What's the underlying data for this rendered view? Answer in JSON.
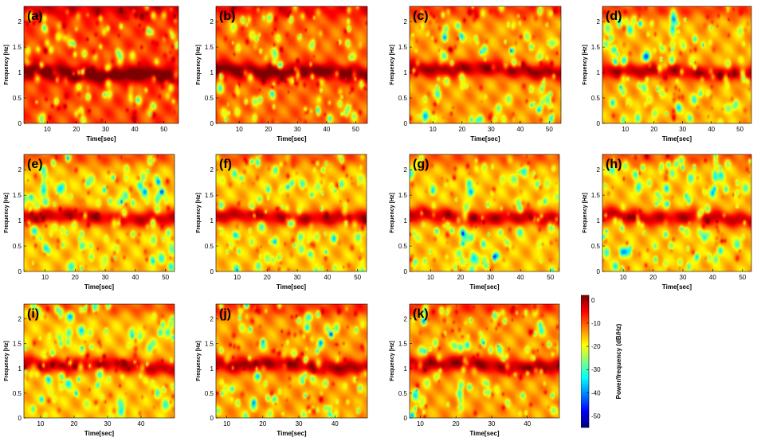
{
  "chart_data": {
    "type": "heatmap",
    "ylabel": "Frequency [Hz]",
    "xlabel": "Time[sec]",
    "colorbar": {
      "label": "Power/frequency (dB/Hz)",
      "ticks": [
        "0",
        "-10",
        "-20",
        "-30",
        "-40",
        "-50"
      ],
      "tick_values": [
        0,
        -10,
        -20,
        -30,
        -40,
        -50
      ],
      "range": [
        -55,
        2
      ],
      "colors": [
        "#00007f",
        "#0000ff",
        "#0080ff",
        "#00ffff",
        "#80ff80",
        "#ffff00",
        "#ff8000",
        "#ff0000",
        "#7f0000"
      ]
    },
    "panels": [
      {
        "label": "(a)",
        "xlim": [
          2,
          55
        ],
        "ylim": [
          0,
          2.3
        ],
        "xticks": [
          "10",
          "20",
          "30",
          "40",
          "50"
        ],
        "xtick_values": [
          10,
          20,
          30,
          40,
          50
        ],
        "yticks": [
          "0",
          "0.5",
          "1",
          "1.5",
          "2"
        ],
        "ytick_values": [
          0,
          0.5,
          1,
          1.5,
          2
        ],
        "band_hz": 1.0,
        "base_db": -9,
        "seed": 1
      },
      {
        "label": "(b)",
        "xlim": [
          2,
          54
        ],
        "ylim": [
          0,
          2.3
        ],
        "xticks": [
          "10",
          "20",
          "30",
          "40",
          "50"
        ],
        "xtick_values": [
          10,
          20,
          30,
          40,
          50
        ],
        "yticks": [
          "0",
          "0.5",
          "1",
          "1.5",
          "2"
        ],
        "ytick_values": [
          0,
          0.5,
          1,
          1.5,
          2
        ],
        "band_hz": 1.05,
        "base_db": -11,
        "seed": 2
      },
      {
        "label": "(c)",
        "xlim": [
          2,
          54
        ],
        "ylim": [
          0,
          2.3
        ],
        "xticks": [
          "10",
          "20",
          "30",
          "40",
          "50"
        ],
        "xtick_values": [
          10,
          20,
          30,
          40,
          50
        ],
        "yticks": [
          "0",
          "0.5",
          "1",
          "1.5",
          "2"
        ],
        "ytick_values": [
          0,
          0.5,
          1,
          1.5,
          2
        ],
        "band_hz": 1.1,
        "base_db": -14,
        "seed": 3
      },
      {
        "label": "(d)",
        "xlim": [
          2,
          54
        ],
        "ylim": [
          0,
          2.3
        ],
        "xticks": [
          "10",
          "20",
          "30",
          "40",
          "50"
        ],
        "xtick_values": [
          10,
          20,
          30,
          40,
          50
        ],
        "yticks": [
          "0",
          "0.5",
          "1",
          "1.5",
          "2"
        ],
        "ytick_values": [
          0,
          0.5,
          1,
          1.5,
          2
        ],
        "band_hz": 1.05,
        "base_db": -15,
        "seed": 4
      },
      {
        "label": "(e)",
        "xlim": [
          3,
          53
        ],
        "ylim": [
          0,
          2.3
        ],
        "xticks": [
          "10",
          "20",
          "30",
          "40",
          "50"
        ],
        "xtick_values": [
          10,
          20,
          30,
          40,
          50
        ],
        "yticks": [
          "0",
          "0.5",
          "1",
          "1.5",
          "2"
        ],
        "ytick_values": [
          0,
          0.5,
          1,
          1.5,
          2
        ],
        "band_hz": 1.1,
        "base_db": -16,
        "seed": 5
      },
      {
        "label": "(f)",
        "xlim": [
          3,
          53
        ],
        "ylim": [
          0,
          2.3
        ],
        "xticks": [
          "10",
          "20",
          "30",
          "40",
          "50"
        ],
        "xtick_values": [
          10,
          20,
          30,
          40,
          50
        ],
        "yticks": [
          "0",
          "0.5",
          "1",
          "1.5",
          "2"
        ],
        "ytick_values": [
          0,
          0.5,
          1,
          1.5,
          2
        ],
        "band_hz": 1.1,
        "base_db": -16,
        "seed": 6
      },
      {
        "label": "(g)",
        "xlim": [
          3,
          53
        ],
        "ylim": [
          0,
          2.3
        ],
        "xticks": [
          "10",
          "20",
          "30",
          "40",
          "50"
        ],
        "xtick_values": [
          10,
          20,
          30,
          40,
          50
        ],
        "yticks": [
          "0",
          "0.5",
          "1",
          "1.5",
          "2"
        ],
        "ytick_values": [
          0,
          0.5,
          1,
          1.5,
          2
        ],
        "band_hz": 1.1,
        "base_db": -16,
        "seed": 7
      },
      {
        "label": "(h)",
        "xlim": [
          3,
          53
        ],
        "ylim": [
          0,
          2.3
        ],
        "xticks": [
          "10",
          "20",
          "30",
          "40",
          "50"
        ],
        "xtick_values": [
          10,
          20,
          30,
          40,
          50
        ],
        "yticks": [
          "0",
          "0.5",
          "1",
          "1.5",
          "2"
        ],
        "ytick_values": [
          0,
          0.5,
          1,
          1.5,
          2
        ],
        "band_hz": 1.1,
        "base_db": -16,
        "seed": 8
      },
      {
        "label": "(i)",
        "xlim": [
          5,
          50
        ],
        "ylim": [
          0,
          2.3
        ],
        "xticks": [
          "10",
          "20",
          "30",
          "40"
        ],
        "xtick_values": [
          10,
          20,
          30,
          40
        ],
        "yticks": [
          "0",
          "0.5",
          "1",
          "1.5",
          "2"
        ],
        "ytick_values": [
          0,
          0.5,
          1,
          1.5,
          2
        ],
        "band_hz": 1.1,
        "base_db": -16,
        "seed": 9
      },
      {
        "label": "(j)",
        "xlim": [
          7,
          49
        ],
        "ylim": [
          0,
          2.3
        ],
        "xticks": [
          "10",
          "20",
          "30",
          "40"
        ],
        "xtick_values": [
          10,
          20,
          30,
          40
        ],
        "yticks": [
          "0",
          "0.5",
          "1",
          "1.5",
          "2"
        ],
        "ytick_values": [
          0,
          0.5,
          1,
          1.5,
          2
        ],
        "band_hz": 1.1,
        "base_db": -14,
        "seed": 10
      },
      {
        "label": "(k)",
        "xlim": [
          7,
          49
        ],
        "ylim": [
          0,
          2.3
        ],
        "xticks": [
          "10",
          "20",
          "30",
          "40"
        ],
        "xtick_values": [
          10,
          20,
          30,
          40
        ],
        "yticks": [
          "0",
          "0.5",
          "1",
          "1.5",
          "2"
        ],
        "ytick_values": [
          0,
          0.5,
          1,
          1.5,
          2
        ],
        "band_hz": 1.1,
        "base_db": -14,
        "seed": 11
      }
    ]
  }
}
